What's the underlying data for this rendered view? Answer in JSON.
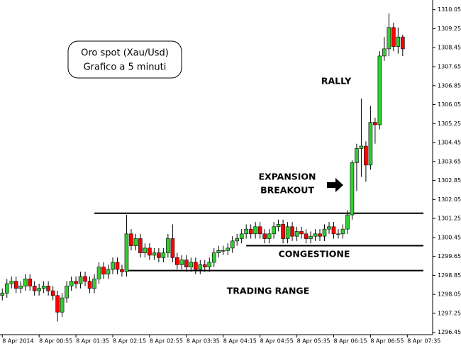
{
  "chart_data": {
    "type": "candlestick",
    "annotations": {
      "box_lines": [
        "Oro spot (Xau/Usd)",
        "Grafico a 5 minuti"
      ],
      "rally": "RALLY",
      "expansion": [
        "EXPANSION",
        "BREAKOUT"
      ],
      "congestion": "CONGESTIONE",
      "range": "TRADING RANGE"
    },
    "up_color": "#32cd32",
    "down_color": "#ff0000",
    "open": [
      1298.0,
      1298.1,
      1298.5,
      1298.6,
      1298.3,
      1298.4,
      1298.7,
      1298.4,
      1298.2,
      1298.3,
      1298.4,
      1298.2,
      1298.0,
      1297.3,
      1297.9,
      1298.4,
      1298.6,
      1298.5,
      1298.8,
      1298.6,
      1298.3,
      1298.7,
      1299.2,
      1298.9,
      1299.1,
      1299.4,
      1299.1,
      1299.0,
      1300.6,
      1300.1,
      1300.4,
      1299.8,
      1300.0,
      1299.7,
      1299.8,
      1299.6,
      1299.8,
      1300.4,
      1299.6,
      1299.3,
      1299.5,
      1299.2,
      1299.4,
      1299.1,
      1299.3,
      1299.2,
      1299.4,
      1299.8,
      1299.9,
      1299.9,
      1300.0,
      1300.3,
      1300.4,
      1300.6,
      1300.8,
      1300.6,
      1300.9,
      1300.6,
      1300.4,
      1300.6,
      1300.9,
      1301.0,
      1300.4,
      1300.9,
      1300.5,
      1300.7,
      1300.6,
      1300.4,
      1300.5,
      1300.6,
      1300.5,
      1300.8,
      1300.9,
      1300.6,
      1300.6,
      1300.8,
      1301.4,
      1303.6,
      1304.2,
      1304.3,
      1303.5,
      1305.3,
      1305.2,
      1308.1,
      1308.4,
      1309.3,
      1308.5,
      1308.9
    ],
    "high": [
      1298.3,
      1298.7,
      1298.8,
      1298.8,
      1298.6,
      1298.9,
      1298.9,
      1298.6,
      1298.5,
      1298.6,
      1298.6,
      1298.4,
      1298.2,
      1298.1,
      1298.6,
      1298.8,
      1298.8,
      1299.0,
      1299.0,
      1298.8,
      1298.9,
      1299.4,
      1299.4,
      1299.3,
      1299.6,
      1299.6,
      1299.3,
      1301.4,
      1300.8,
      1300.6,
      1300.6,
      1300.2,
      1300.2,
      1300.0,
      1300.0,
      1300.0,
      1300.6,
      1301.0,
      1299.8,
      1299.7,
      1299.7,
      1299.6,
      1299.6,
      1299.5,
      1299.5,
      1299.6,
      1300.0,
      1300.1,
      1300.1,
      1300.2,
      1300.5,
      1300.6,
      1300.8,
      1301.0,
      1301.0,
      1301.1,
      1301.1,
      1300.8,
      1300.8,
      1301.1,
      1301.2,
      1301.2,
      1301.1,
      1301.1,
      1300.9,
      1300.9,
      1300.8,
      1300.7,
      1300.8,
      1300.8,
      1301.0,
      1301.1,
      1301.1,
      1300.8,
      1301.0,
      1301.6,
      1303.7,
      1304.4,
      1306.3,
      1304.5,
      1306.0,
      1305.5,
      1308.3,
      1308.9,
      1309.9,
      1309.5,
      1309.3,
      1309.0
    ],
    "low": [
      1297.8,
      1297.9,
      1298.3,
      1298.1,
      1298.1,
      1298.2,
      1298.2,
      1298.0,
      1298.0,
      1298.1,
      1298.0,
      1297.8,
      1296.9,
      1297.1,
      1297.7,
      1298.2,
      1298.3,
      1298.3,
      1298.4,
      1298.1,
      1298.1,
      1298.5,
      1298.7,
      1298.7,
      1298.9,
      1298.9,
      1298.8,
      1298.8,
      1299.9,
      1299.9,
      1299.6,
      1299.6,
      1299.5,
      1299.5,
      1299.4,
      1299.4,
      1299.6,
      1299.4,
      1299.1,
      1299.1,
      1299.0,
      1299.0,
      1298.9,
      1298.9,
      1299.0,
      1299.0,
      1299.2,
      1299.6,
      1299.7,
      1299.7,
      1299.8,
      1300.1,
      1300.2,
      1300.4,
      1300.4,
      1300.4,
      1300.4,
      1300.2,
      1300.2,
      1300.4,
      1300.7,
      1300.2,
      1300.2,
      1300.3,
      1300.3,
      1300.4,
      1300.2,
      1300.2,
      1300.3,
      1300.3,
      1300.3,
      1300.6,
      1300.4,
      1300.4,
      1300.4,
      1300.6,
      1301.2,
      1302.4,
      1303.0,
      1302.8,
      1303.3,
      1304.4,
      1305.0,
      1307.9,
      1308.1,
      1308.3,
      1308.2,
      1308.1
    ],
    "close": [
      1298.1,
      1298.5,
      1298.6,
      1298.3,
      1298.4,
      1298.7,
      1298.4,
      1298.2,
      1298.3,
      1298.4,
      1298.2,
      1298.0,
      1297.3,
      1297.9,
      1298.4,
      1298.6,
      1298.5,
      1298.8,
      1298.6,
      1298.3,
      1298.7,
      1299.2,
      1298.9,
      1299.1,
      1299.4,
      1299.1,
      1299.0,
      1300.6,
      1300.1,
      1300.4,
      1299.8,
      1300.0,
      1299.7,
      1299.8,
      1299.6,
      1299.8,
      1300.4,
      1299.6,
      1299.3,
      1299.5,
      1299.2,
      1299.4,
      1299.1,
      1299.3,
      1299.2,
      1299.4,
      1299.8,
      1299.9,
      1299.9,
      1300.0,
      1300.3,
      1300.4,
      1300.6,
      1300.8,
      1300.6,
      1300.9,
      1300.6,
      1300.4,
      1300.6,
      1300.9,
      1301.0,
      1300.4,
      1300.9,
      1300.5,
      1300.7,
      1300.6,
      1300.4,
      1300.5,
      1300.6,
      1300.5,
      1300.8,
      1300.9,
      1300.6,
      1300.6,
      1300.8,
      1301.4,
      1303.6,
      1304.2,
      1304.3,
      1303.5,
      1305.3,
      1305.2,
      1308.1,
      1308.4,
      1309.3,
      1308.5,
      1308.9,
      1308.4
    ],
    "levels": [
      {
        "value": 1301.47,
        "from": 20
      },
      {
        "value": 1300.1,
        "from": 53
      },
      {
        "value": 1299.05,
        "from": 27
      }
    ],
    "xlim": [
      -0.5,
      93.5
    ],
    "xticks": [
      {
        "value": 0,
        "label": "8 Apr 2014"
      },
      {
        "value": 8,
        "label": "8 Apr 00:55"
      },
      {
        "value": 16,
        "label": "8 Apr 01:35"
      },
      {
        "value": 24,
        "label": "8 Apr 02:15"
      },
      {
        "value": 32,
        "label": "8 Apr 02:55"
      },
      {
        "value": 40,
        "label": "8 Apr 03:35"
      },
      {
        "value": 48,
        "label": "8 Apr 04:15"
      },
      {
        "value": 56,
        "label": "8 Apr 04:55"
      },
      {
        "value": 64,
        "label": "8 Apr 05:35"
      },
      {
        "value": 72,
        "label": "8 Apr 06:15"
      },
      {
        "value": 80,
        "label": "8 Apr 06:55"
      },
      {
        "value": 88,
        "label": "8 Apr 07:35"
      }
    ],
    "ylim": [
      1296.35,
      1310.4
    ],
    "yticks": [
      1296.45,
      1297.25,
      1298.05,
      1298.85,
      1299.65,
      1300.45,
      1301.25,
      1302.05,
      1302.85,
      1303.65,
      1304.45,
      1305.25,
      1306.05,
      1306.85,
      1307.65,
      1308.45,
      1309.25,
      1310.05
    ]
  }
}
